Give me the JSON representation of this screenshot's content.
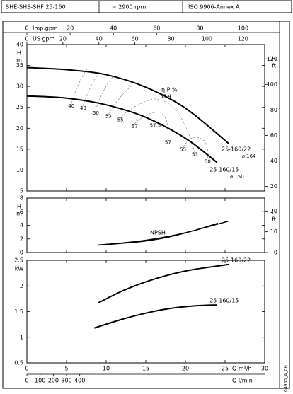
{
  "header": [
    "SHE-SHS-SHF 25-160",
    "~ 2900 rpm",
    "ISO 9906-Annex A"
  ],
  "code": "04933_A_CH",
  "chart_data": [
    {
      "type": "line",
      "y_label": [
        "H",
        "m"
      ],
      "y2_label": [
        "H",
        "ft"
      ],
      "ylim": [
        5,
        40
      ],
      "yticks": [
        5,
        10,
        15,
        20,
        25,
        30,
        35,
        40
      ],
      "y2ticks": [
        20,
        40,
        60,
        80,
        100,
        120
      ],
      "top_axes": [
        {
          "label": "Imp.gpm",
          "ticks": [
            0,
            20,
            40,
            60,
            80,
            100
          ]
        },
        {
          "label": "US gpm",
          "ticks": [
            0,
            20,
            40,
            60,
            80,
            100,
            120
          ]
        }
      ],
      "efficiency_label": "η P %",
      "series": [
        {
          "name": "25-160/22",
          "impeller": "⌀ 164",
          "color": "#000000",
          "x": [
            0,
            5,
            10,
            15,
            20,
            25.5
          ],
          "values": [
            34.5,
            34,
            32.8,
            29.8,
            24.8,
            16.3
          ]
        },
        {
          "name": "25-160/15",
          "impeller": "⌀ 150",
          "color": "#000000",
          "x": [
            0,
            5,
            10,
            15,
            20,
            24
          ],
          "values": [
            27.7,
            27.2,
            25.6,
            22.6,
            17.6,
            11.8
          ]
        }
      ],
      "efficiency": {
        "labels": [
          "40",
          "43",
          "50",
          "53",
          "55",
          "57",
          "57.5",
          "55.4",
          "57",
          "55",
          "53",
          "50"
        ],
        "x": [
          5.6,
          7.1,
          8.7,
          10.3,
          11.8,
          13.6,
          16.2,
          17.5,
          17.8,
          19.7,
          21.2,
          22.8
        ],
        "y": [
          25.3,
          24.8,
          23.6,
          22.8,
          22,
          20.4,
          20.6,
          27.6,
          16.6,
          14.9,
          13.7,
          12
        ]
      }
    },
    {
      "type": "line",
      "y_label": [
        "H",
        "m"
      ],
      "y2_label": [
        "H",
        "ft"
      ],
      "ylim": [
        0,
        8
      ],
      "yticks": [
        0,
        2,
        4,
        6,
        8
      ],
      "y2ticks": [
        0,
        10,
        20
      ],
      "curve_label": "NPSH",
      "series": [
        {
          "color": "#000000",
          "x": [
            9,
            12,
            15,
            18,
            21,
            25.4
          ],
          "values": [
            1.1,
            1.4,
            1.8,
            2.4,
            3.2,
            4.6
          ]
        },
        {
          "color": "#000000",
          "x": [
            9,
            12,
            15,
            18,
            21,
            24.1
          ],
          "values": [
            1.1,
            1.35,
            1.7,
            2.3,
            3.2,
            4.3
          ]
        }
      ]
    },
    {
      "type": "line",
      "y_label": [
        "kW"
      ],
      "ylim": [
        0.5,
        2.5
      ],
      "yticks": [
        0.5,
        1,
        1.5,
        2,
        2.5
      ],
      "xlim": [
        0,
        30
      ],
      "xticks": [
        0,
        5,
        10,
        15,
        20,
        25,
        30
      ],
      "x_label": "Q m³/h",
      "x2ticks": [
        0,
        100,
        200,
        300,
        400
      ],
      "x2_label": "Q l/min",
      "series": [
        {
          "name": "25-160/22",
          "color": "#000000",
          "x": [
            9,
            12,
            15,
            18,
            21,
            25.5
          ],
          "values": [
            1.67,
            1.9,
            2.08,
            2.22,
            2.32,
            2.42
          ]
        },
        {
          "name": "25-160/15",
          "color": "#000000",
          "x": [
            8.5,
            12,
            15,
            18,
            21,
            24
          ],
          "values": [
            1.18,
            1.35,
            1.47,
            1.56,
            1.61,
            1.63
          ]
        }
      ]
    }
  ]
}
